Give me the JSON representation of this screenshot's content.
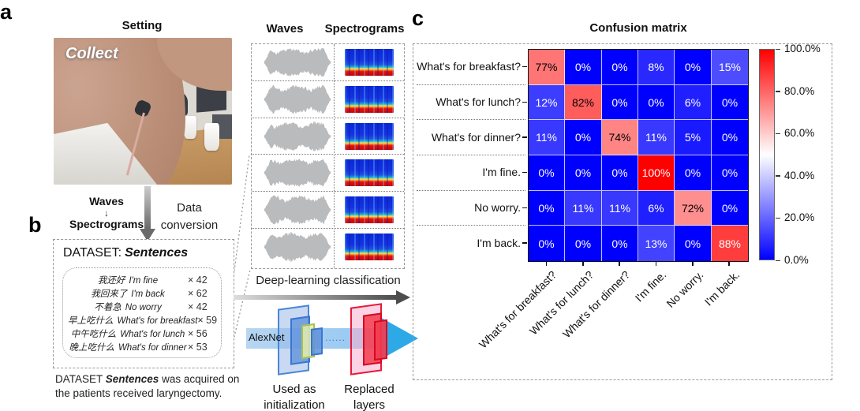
{
  "figure": {
    "panel_a": {
      "label": "a",
      "title": "Setting",
      "photo_caption": "Collect",
      "flow_top": "Waves",
      "flow_arrow": "↓",
      "flow_bottom": "Spectrograms",
      "conversion_label": "Data conversion"
    },
    "panel_b": {
      "label": "b",
      "heading_prefix": "DATASET:",
      "heading_name": "Sentences",
      "sentences": [
        {
          "zh": "我还好",
          "en": "I'm fine",
          "count": "× 42"
        },
        {
          "zh": "我回来了",
          "en": "I'm back",
          "count": "× 62"
        },
        {
          "zh": "不着急",
          "en": "No worry",
          "count": "× 42"
        },
        {
          "zh": "早上吃什么",
          "en": "What's for breakfast",
          "count": "× 59"
        },
        {
          "zh": "中午吃什么",
          "en": "What's for lunch",
          "count": "× 56"
        },
        {
          "zh": "晚上吃什么",
          "en": "What's for dinner",
          "count": "× 53"
        }
      ],
      "caption_prefix": "DATASET ",
      "caption_emph": "Sentences",
      "caption_suffix": " was acquired on the patients received laryngectomy."
    },
    "panel_middle": {
      "waves_header": "Waves",
      "spectrograms_header": "Spectrograms",
      "rows": 6,
      "dl_label": "Deep-learning classification",
      "alexnet_label": "AlexNet",
      "dots_label": "......",
      "used_as_label": "Used as initialization",
      "replaced_label": "Replaced layers"
    },
    "panel_c": {
      "label": "c",
      "title": "Confusion matrix"
    }
  },
  "chart_data": {
    "type": "heatmap",
    "title": "Confusion matrix",
    "x_labels": [
      "What's for breakfast?",
      "What's for lunch?",
      "What's for dinner?",
      "I'm fine.",
      "No worry.",
      "I'm back."
    ],
    "y_labels": [
      "What's for breakfast?",
      "What's for lunch?",
      "What's for dinner?",
      "I'm fine.",
      "No worry.",
      "I'm back."
    ],
    "values_percent": [
      [
        77,
        0,
        0,
        8,
        0,
        15
      ],
      [
        12,
        82,
        0,
        0,
        6,
        0
      ],
      [
        11,
        0,
        74,
        11,
        5,
        0
      ],
      [
        0,
        0,
        0,
        100,
        0,
        0
      ],
      [
        0,
        11,
        11,
        6,
        72,
        0
      ],
      [
        0,
        0,
        0,
        13,
        0,
        88
      ]
    ],
    "cell_label_suffix": "%",
    "vmin": 0,
    "vmax": 100,
    "colormap": "blue-white-red",
    "colorbar_ticks": [
      "100.0%",
      "80.0%",
      "60.0%",
      "40.0%",
      "20.0%",
      "0.0%"
    ],
    "legend_position": "right",
    "grid": false
  },
  "colors": {
    "heat_low": "#0000ff",
    "heat_mid": "#ffffff",
    "heat_high": "#ff0000",
    "waveform_gray": "#b9bbbd",
    "arrow_gray_light": "#d9d9d9",
    "arrow_gray_dark": "#555555",
    "dashed_border": "#999999",
    "alexnet_blue": "#3a76d0",
    "alexnet_red": "#d80820",
    "big_arrow_cyan": "#2ea9e8"
  }
}
